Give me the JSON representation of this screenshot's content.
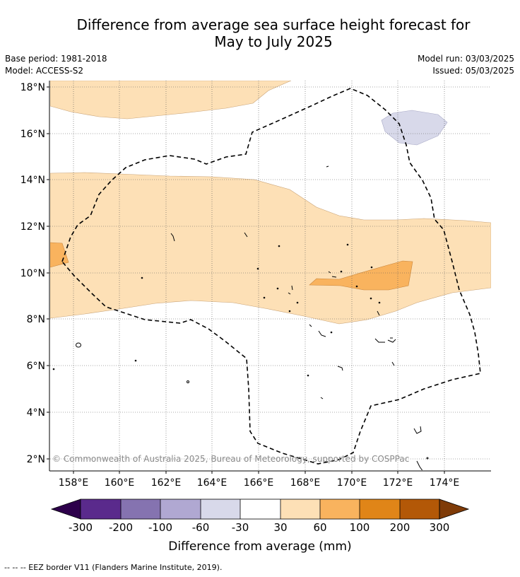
{
  "title": {
    "line1": "Difference from average sea surface height forecast for",
    "line2": "May to July 2025"
  },
  "meta": {
    "base_period": "Base period: 1981-2018",
    "model": "Model: ACCESS-S2",
    "model_run": "Model run: 03/03/2025",
    "issued": "Issued: 05/03/2025"
  },
  "map": {
    "lat_labels": [
      "18°N",
      "16°N",
      "14°N",
      "12°N",
      "10°N",
      "8°N",
      "6°N",
      "4°N",
      "2°N"
    ],
    "lon_labels": [
      "158°E",
      "160°E",
      "162°E",
      "164°E",
      "166°E",
      "168°E",
      "170°E",
      "172°E",
      "174°E"
    ],
    "lat_range": [
      1.5,
      18.3
    ],
    "lon_range": [
      157.0,
      176.0
    ],
    "copyright": "© Commonwealth of Australia 2025, Bureau of Meteorology, supported by COSPPac",
    "fill_colors": {
      "c30_60": "#fde0b6",
      "c60_100": "#f9b35e",
      "cm60_m30": "#d8d9ea"
    }
  },
  "colorbar": {
    "label": "Difference from average (mm)",
    "ticks": [
      "-300",
      "-200",
      "-100",
      "-60",
      "-30",
      "30",
      "60",
      "100",
      "200",
      "300"
    ],
    "colors": [
      "#5a2a8c",
      "#8573b0",
      "#b0a8d2",
      "#d8d9ea",
      "#ffffff",
      "#fde0b6",
      "#f9b35e",
      "#e08518",
      "#b35807"
    ],
    "under_color": "#2d004b",
    "over_color": "#7f3b08"
  },
  "footer": {
    "legend": "--  --  -- EEZ border V11 (Flanders Marine Institute, 2019)."
  }
}
